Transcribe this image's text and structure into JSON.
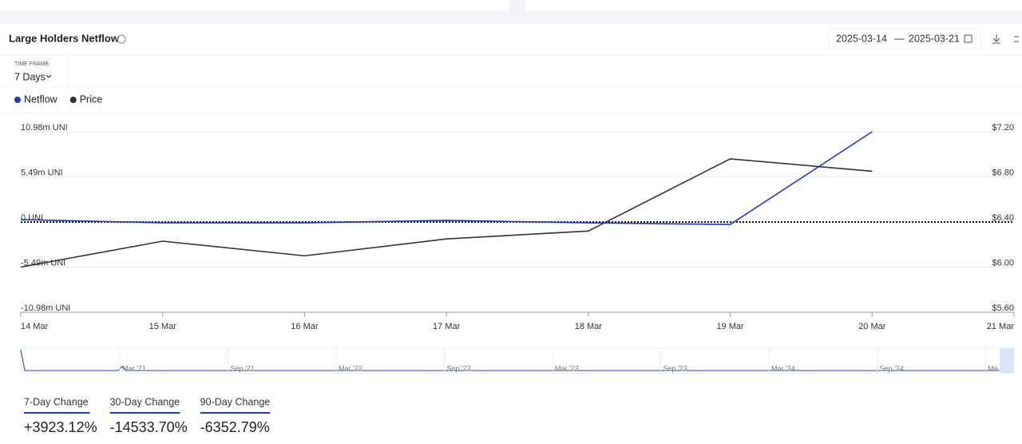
{
  "header": {
    "title": "Large Holders Netflow",
    "date_start": "2025-03-14",
    "date_separator": "—",
    "date_end": "2025-03-21"
  },
  "timeframe": {
    "label": "TIME FRAME",
    "value": "7 Days"
  },
  "chart_data": {
    "type": "line",
    "categories": [
      "14 Mar",
      "15 Mar",
      "16 Mar",
      "17 Mar",
      "18 Mar",
      "19 Mar",
      "20 Mar",
      "21 Mar"
    ],
    "series": [
      {
        "name": "Netflow",
        "color": "#1a3ccc",
        "values": [
          0.3,
          -0.1,
          -0.1,
          0.2,
          -0.1,
          -0.3,
          10.98,
          null
        ]
      },
      {
        "name": "Price",
        "color": "#333333",
        "axis": "y2",
        "values": [
          6.0,
          6.23,
          6.1,
          6.25,
          6.32,
          6.96,
          6.85,
          null
        ]
      }
    ],
    "ylim": [
      -10.98,
      10.98
    ],
    "yticks": [
      {
        "value": -10.98,
        "label": "-10.98m UNI"
      },
      {
        "value": -5.49,
        "label": "-5.49m UNI"
      },
      {
        "value": 0,
        "label": "0 UNI"
      },
      {
        "value": 5.49,
        "label": "5.49m UNI"
      },
      {
        "value": 10.98,
        "label": "10.98m UNI"
      }
    ],
    "y2lim": [
      5.6,
      7.2
    ],
    "y2ticks": [
      {
        "value": 5.6,
        "label": "$5.60"
      },
      {
        "value": 6.0,
        "label": "$6.00"
      },
      {
        "value": 6.4,
        "label": "$6.40"
      },
      {
        "value": 6.8,
        "label": "$6.80"
      },
      {
        "value": 7.2,
        "label": "$7.20"
      }
    ],
    "grid": true
  },
  "navigator": {
    "labels": [
      "Mar '21",
      "Sep '21",
      "Mar '22",
      "Sep '22",
      "Mar '23",
      "Sep '23",
      "Mar '24",
      "Sep '24",
      "Ma"
    ]
  },
  "stats": [
    {
      "label": "7-Day Change",
      "value": "+3923.12%"
    },
    {
      "label": "30-Day Change",
      "value": "-14533.70%"
    },
    {
      "label": "90-Day Change",
      "value": "-6352.79%"
    }
  ]
}
